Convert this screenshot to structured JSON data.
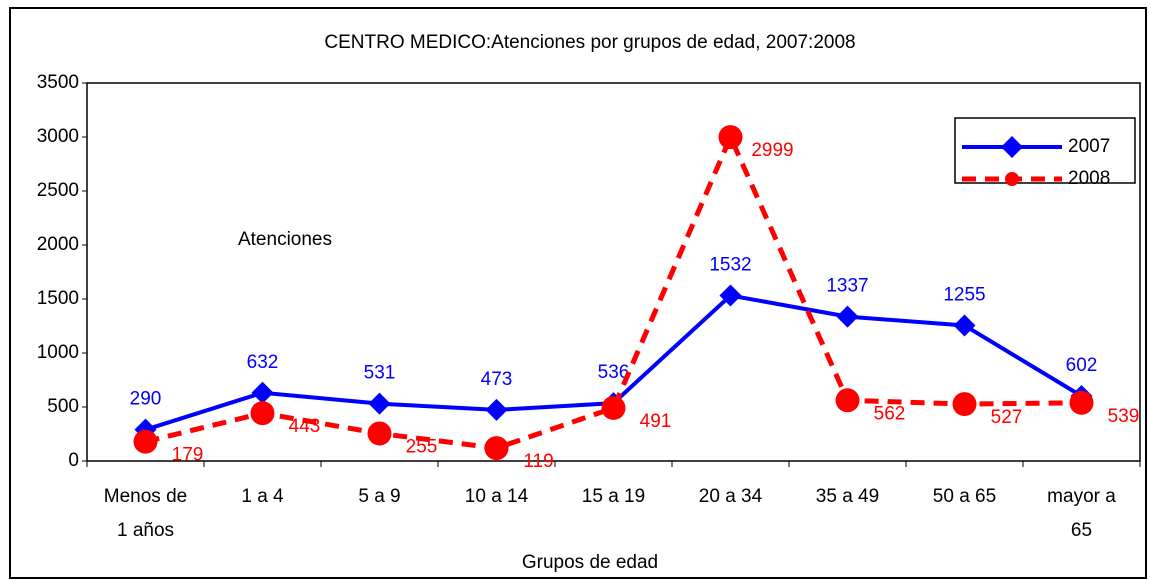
{
  "chart_data": {
    "type": "line",
    "title": "CENTRO MEDICO:Atenciones por grupos de edad, 2007:2008",
    "x_label": "Grupos de edad",
    "y_label": "Atenciones",
    "categories": [
      [
        "Menos de",
        "1 años"
      ],
      [
        "1 a 4"
      ],
      [
        "5 a 9"
      ],
      [
        "10 a 14"
      ],
      [
        "15 a 19"
      ],
      [
        "20 a 34"
      ],
      [
        "35 a 49"
      ],
      [
        "50 a 65"
      ],
      [
        "mayor a",
        "65"
      ]
    ],
    "series": [
      {
        "name": "2007",
        "color": "#0000ff",
        "marker": "diamond",
        "dashed": false,
        "values": [
          290,
          632,
          531,
          473,
          536,
          1532,
          1337,
          1255,
          602
        ]
      },
      {
        "name": "2008",
        "color": "#ff0000",
        "marker": "circle",
        "dashed": true,
        "values": [
          179,
          443,
          255,
          119,
          491,
          2999,
          562,
          527,
          539
        ]
      }
    ],
    "ylim": [
      0,
      3500
    ],
    "yticks": [
      0,
      500,
      1000,
      1500,
      2000,
      2500,
      3000,
      3500
    ],
    "grid": false,
    "legend": "top-right"
  }
}
